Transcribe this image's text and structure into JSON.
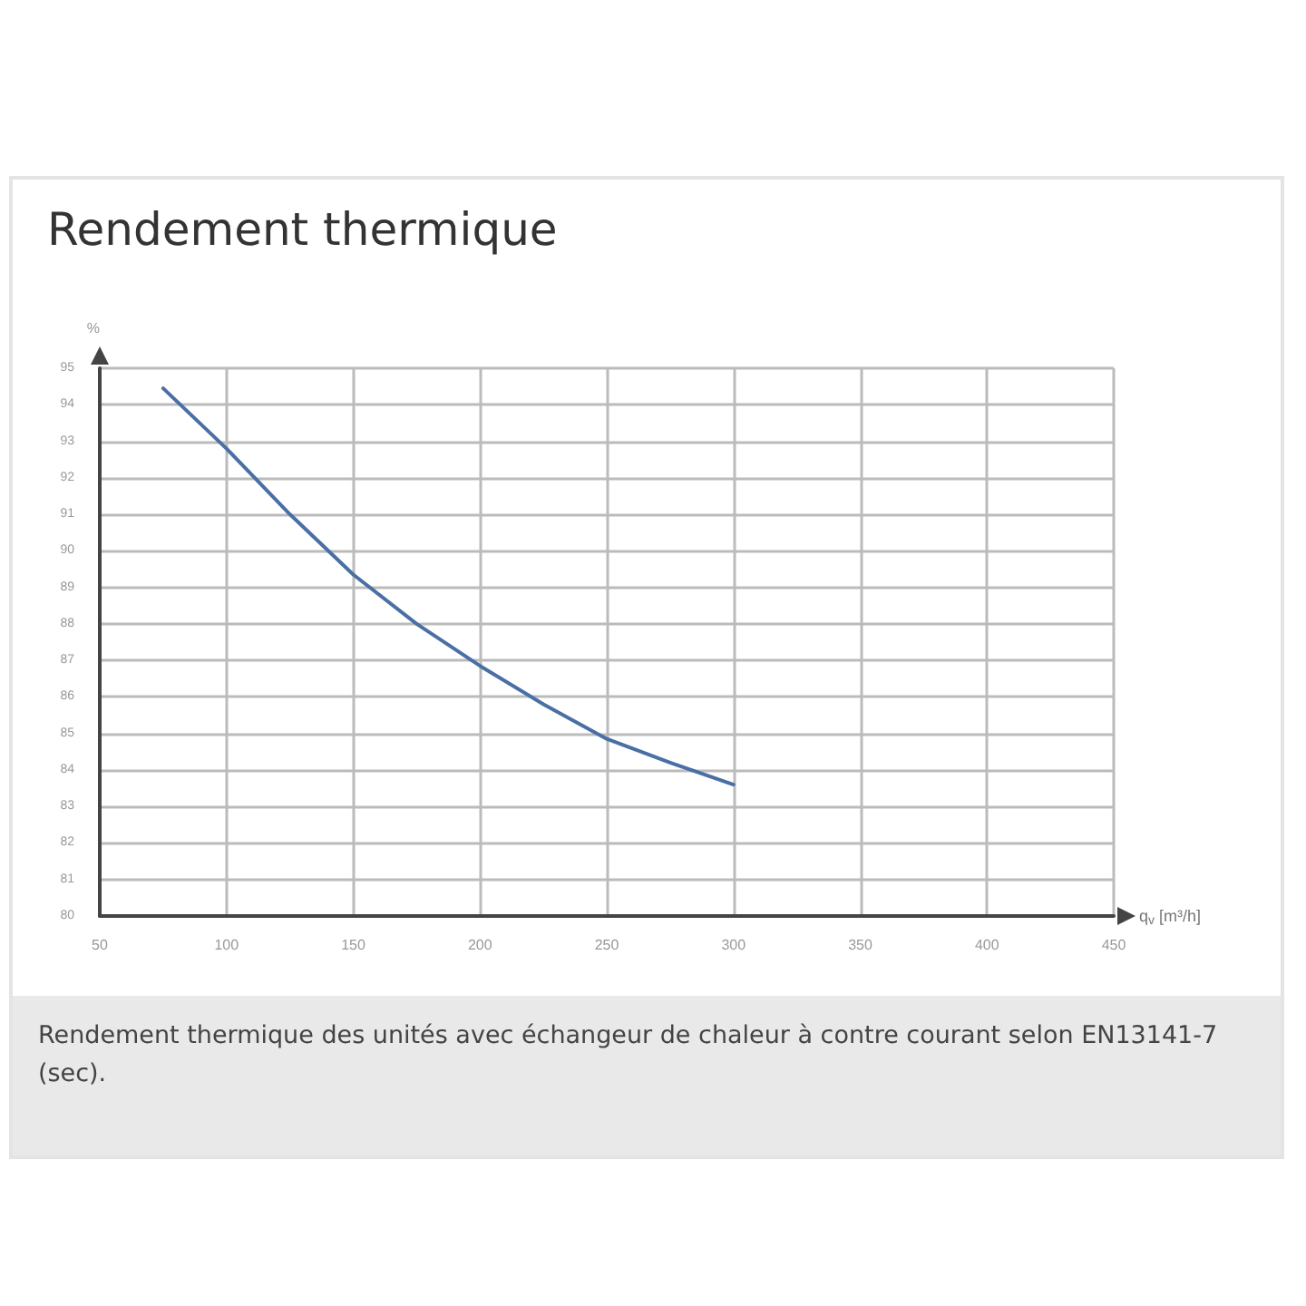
{
  "chart_data": {
    "type": "line",
    "title": "Rendement thermique",
    "xlabel": "q$_{v}$ [m³/h]",
    "ylabel": "%",
    "x": [
      75,
      100,
      125,
      150,
      175,
      200,
      225,
      250,
      275,
      300
    ],
    "series": [
      {
        "color": "#4a6fa5",
        "values": [
          94.45,
          92.8,
          91.0,
          89.35,
          88.0,
          86.85,
          85.8,
          84.85,
          84.2,
          83.6
        ]
      }
    ],
    "xlim": [
      50,
      450
    ],
    "xticks": [
      50,
      100,
      150,
      200,
      250,
      300,
      350,
      400,
      450
    ],
    "ylim": [
      80,
      95
    ],
    "yticks": [
      80,
      81,
      82,
      83,
      84,
      85,
      86,
      87,
      88,
      89,
      90,
      91,
      92,
      93,
      94,
      95
    ],
    "grid": true,
    "marker": "none",
    "line_style": "solid",
    "annotations": [
      "Rendement thermique des unités avec échangeur de chaleur à contre courant selon EN13141-7 (sec)."
    ]
  }
}
